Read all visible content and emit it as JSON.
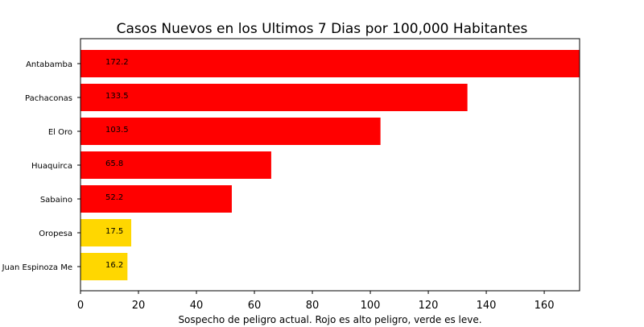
{
  "chart_data": {
    "type": "bar",
    "orientation": "horizontal",
    "title": "Casos Nuevos en los Ultimos 7 Dias por 100,000 Habitantes",
    "xlabel": "Sospecho de peligro actual. Rojo es alto peligro, verde es leve.",
    "ylabel": "",
    "categories": [
      "Antabamba",
      "Pachaconas",
      "El Oro",
      "Huaquirca",
      "Sabaino",
      "Oropesa",
      "Juan Espinoza Me"
    ],
    "values": [
      172.2,
      133.5,
      103.5,
      65.8,
      52.2,
      17.5,
      16.2
    ],
    "data_labels": [
      "172.2",
      "133.5",
      "103.5",
      "65.8",
      "52.2",
      "17.5",
      "16.2"
    ],
    "bar_colors": [
      "#ff0000",
      "#ff0000",
      "#ff0000",
      "#ff0000",
      "#ff0000",
      "#ffd700",
      "#ffd700"
    ],
    "xlim": [
      0,
      172.2
    ],
    "xticks": [
      0,
      20,
      40,
      60,
      80,
      100,
      120,
      140,
      160
    ],
    "grid": false,
    "legend": "none"
  }
}
